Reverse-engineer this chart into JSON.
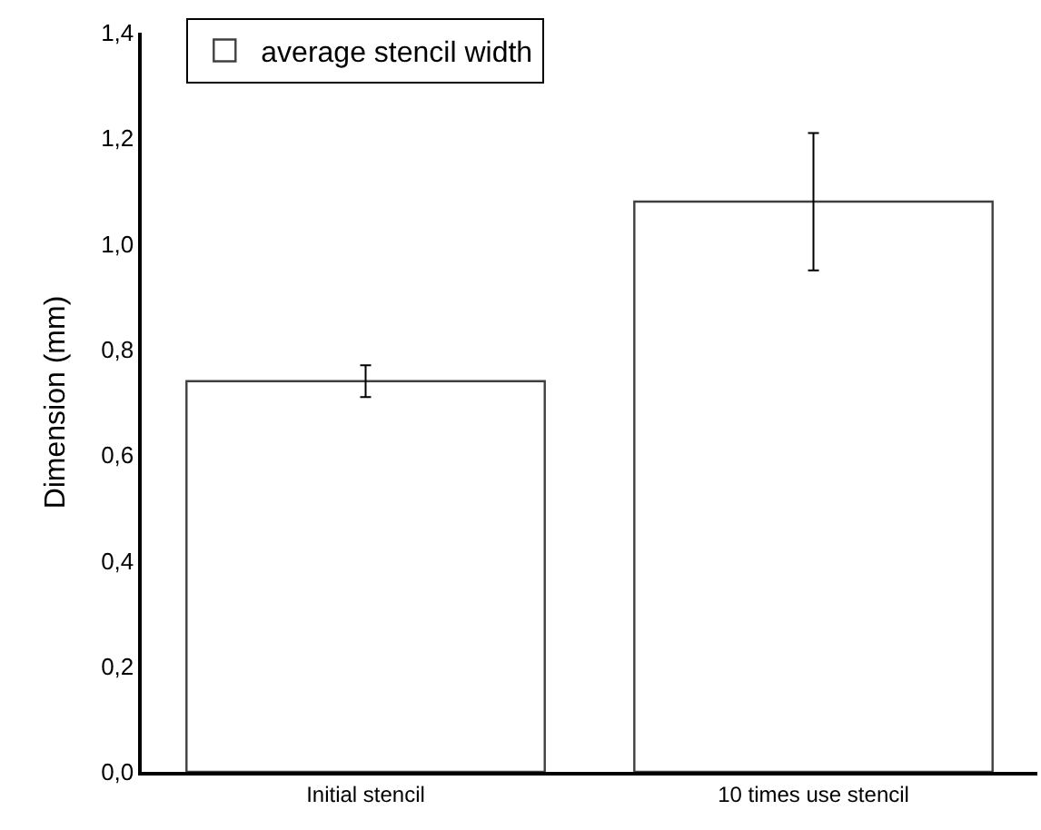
{
  "chart_data": {
    "type": "bar",
    "ylabel": "Dimension (mm)",
    "categories": [
      "Initial stencil",
      "10 times use stencil"
    ],
    "series": [
      {
        "name": "average stencil width",
        "color": "#ffffff",
        "values": [
          0.74,
          1.08
        ],
        "errors": [
          0.03,
          0.13
        ]
      }
    ],
    "ylim": [
      0,
      1.4
    ],
    "yticks": [
      {
        "value": 0,
        "label": "0,0"
      },
      {
        "value": 0.2,
        "label": "0,2"
      },
      {
        "value": 0.4,
        "label": "0,4"
      },
      {
        "value": 0.6,
        "label": "0,6"
      },
      {
        "value": 0.8,
        "label": "0,8"
      },
      {
        "value": 1,
        "label": "1,0"
      },
      {
        "value": 1.2,
        "label": "1,2"
      },
      {
        "value": 1.4,
        "label": "1,4"
      }
    ],
    "grid": false,
    "legend": "top left"
  }
}
